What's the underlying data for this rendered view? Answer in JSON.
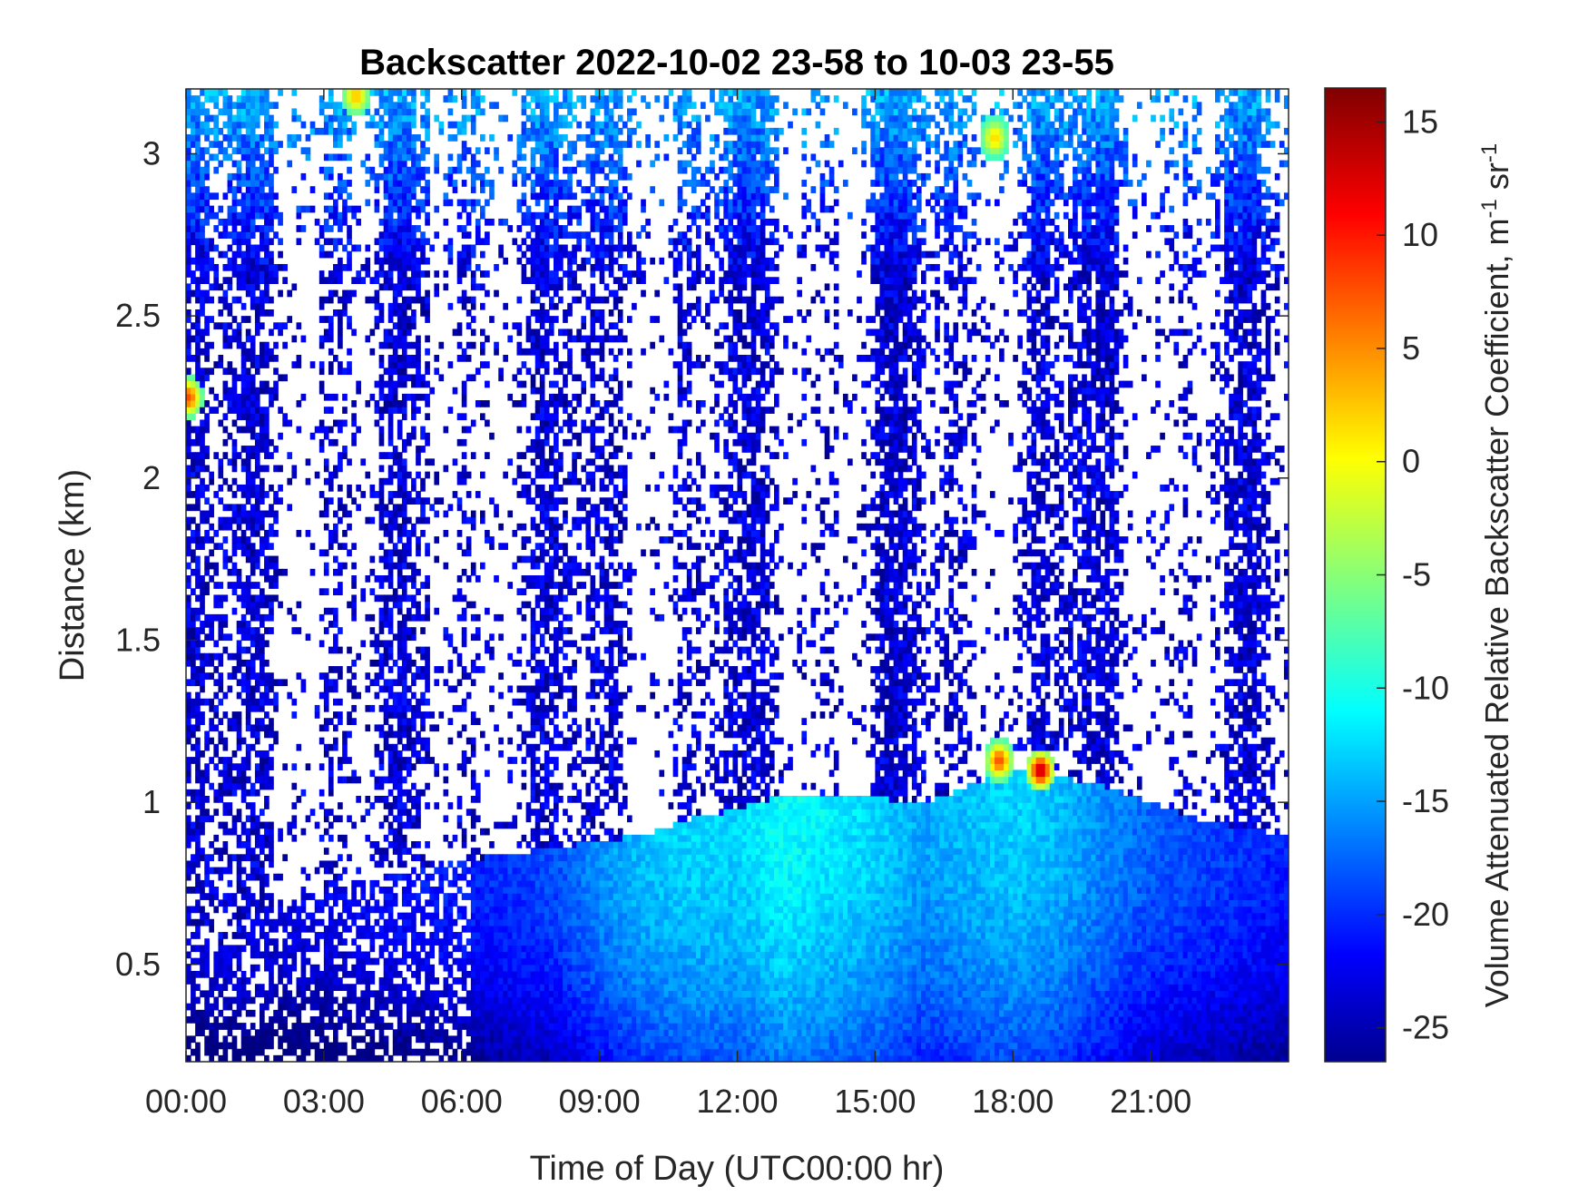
{
  "chart_data": {
    "type": "heatmap",
    "title": "Backscatter 2022-10-02 23-58 to 10-03 23-55",
    "xlabel": "Time of Day (UTC00:00 hr)",
    "ylabel": "Distance (km)",
    "colorbar_label": "Volume Attenuated Relative Backscatter Coefficient, m",
    "colorbar_label_unit_sup1": "-1",
    "colorbar_label_unit_mid": " sr",
    "colorbar_label_unit_sup2": "-1",
    "x_range_hours": [
      0,
      24
    ],
    "y_range_km": [
      0.2,
      3.2
    ],
    "color_range": [
      -26.5,
      16.5
    ],
    "colormap": "jet",
    "no_data_color": "#ffffff",
    "x_ticks": [
      {
        "value": 0,
        "label": "00:00"
      },
      {
        "value": 3,
        "label": "03:00"
      },
      {
        "value": 6,
        "label": "06:00"
      },
      {
        "value": 9,
        "label": "09:00"
      },
      {
        "value": 12,
        "label": "12:00"
      },
      {
        "value": 15,
        "label": "15:00"
      },
      {
        "value": 18,
        "label": "18:00"
      },
      {
        "value": 21,
        "label": "21:00"
      }
    ],
    "y_ticks": [
      {
        "value": 0.5,
        "label": "0.5"
      },
      {
        "value": 1,
        "label": "1"
      },
      {
        "value": 1.5,
        "label": "1.5"
      },
      {
        "value": 2,
        "label": "2"
      },
      {
        "value": 2.5,
        "label": "2.5"
      },
      {
        "value": 3,
        "label": "3"
      }
    ],
    "colorbar_ticks": [
      {
        "value": -25,
        "label": "-25"
      },
      {
        "value": -20,
        "label": "-20"
      },
      {
        "value": -15,
        "label": "-15"
      },
      {
        "value": -10,
        "label": "-10"
      },
      {
        "value": -5,
        "label": "-5"
      },
      {
        "value": 0,
        "label": "0"
      },
      {
        "value": 5,
        "label": "5"
      },
      {
        "value": 10,
        "label": "10"
      },
      {
        "value": 15,
        "label": "15"
      }
    ],
    "boundary_layer_top_km": [
      [
        0,
        0.55
      ],
      [
        1,
        0.55
      ],
      [
        2,
        0.7
      ],
      [
        3,
        0.72
      ],
      [
        4,
        0.76
      ],
      [
        5,
        0.8
      ],
      [
        6,
        0.82
      ],
      [
        7,
        0.84
      ],
      [
        8,
        0.86
      ],
      [
        9,
        0.88
      ],
      [
        10,
        0.9
      ],
      [
        11,
        0.95
      ],
      [
        12,
        0.98
      ],
      [
        13,
        1.02
      ],
      [
        14,
        1.03
      ],
      [
        15,
        1.02
      ],
      [
        16,
        0.99
      ],
      [
        17,
        1.05
      ],
      [
        18,
        1.1
      ],
      [
        19,
        1.08
      ],
      [
        20,
        1.05
      ],
      [
        21,
        1.0
      ],
      [
        22,
        0.95
      ],
      [
        23,
        0.92
      ],
      [
        24,
        0.9
      ]
    ],
    "boundary_layer_value_db": [
      [
        0,
        -23
      ],
      [
        3,
        -22
      ],
      [
        6,
        -20
      ],
      [
        8,
        -18
      ],
      [
        9,
        -15
      ],
      [
        10,
        -13
      ],
      [
        11,
        -12
      ],
      [
        12,
        -12
      ],
      [
        13,
        -10
      ],
      [
        14,
        -11
      ],
      [
        15,
        -12
      ],
      [
        16,
        -14
      ],
      [
        17,
        -13
      ],
      [
        18,
        -12
      ],
      [
        19,
        -13
      ],
      [
        20,
        -15
      ],
      [
        21,
        -17
      ],
      [
        22,
        -18
      ],
      [
        23,
        -19
      ],
      [
        24,
        -20
      ]
    ],
    "peak_features": [
      {
        "time_hours": 18.6,
        "distance_km": 1.1,
        "value_db": 14
      },
      {
        "time_hours": 17.7,
        "distance_km": 1.13,
        "value_db": 8
      },
      {
        "time_hours": 0.05,
        "distance_km": 2.25,
        "value_db": 8
      },
      {
        "time_hours": 3.7,
        "distance_km": 3.18,
        "value_db": 3
      },
      {
        "time_hours": 17.6,
        "distance_km": 3.05,
        "value_db": 2
      }
    ]
  }
}
